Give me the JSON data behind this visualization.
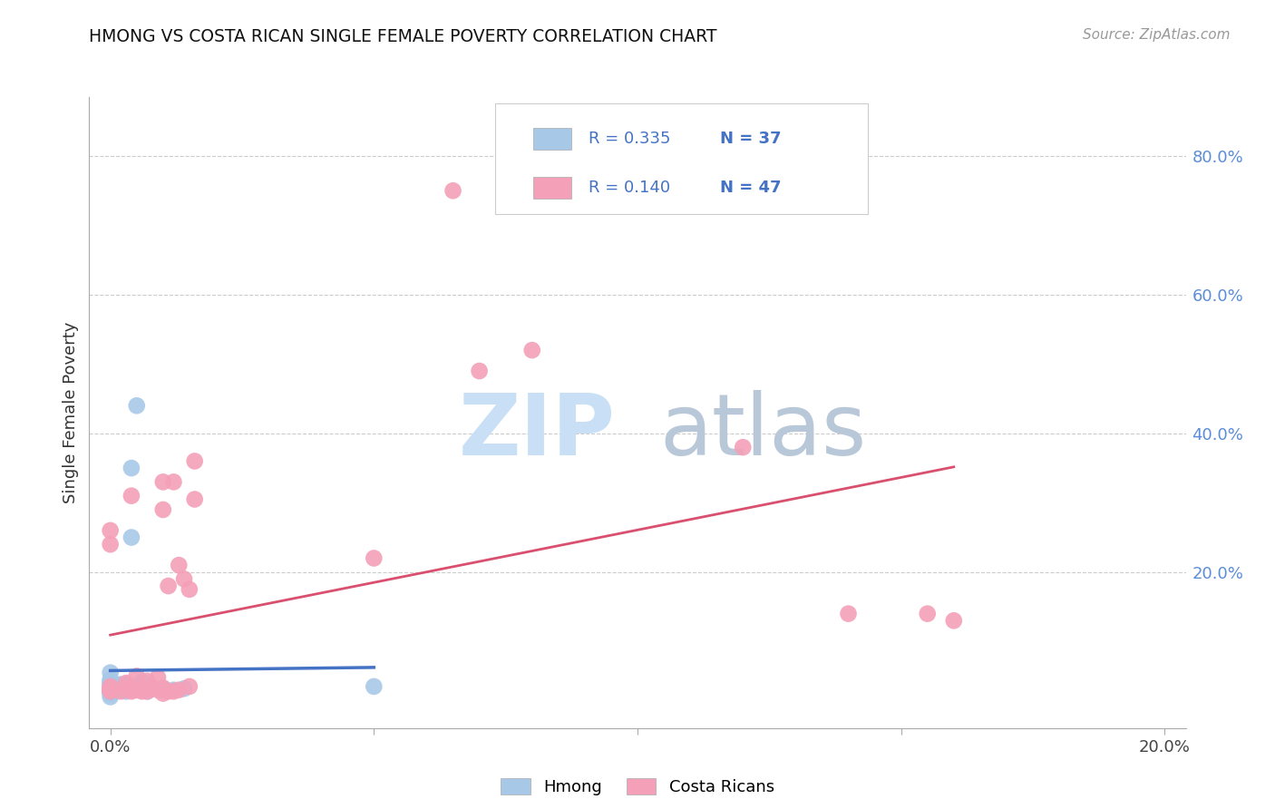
{
  "title": "HMONG VS COSTA RICAN SINGLE FEMALE POVERTY CORRELATION CHART",
  "source": "Source: ZipAtlas.com",
  "ylabel": "Single Female Poverty",
  "hmong_R": 0.335,
  "hmong_N": 37,
  "cr_R": 0.14,
  "cr_N": 47,
  "hmong_color": "#a8c8e8",
  "cr_color": "#f4a0b8",
  "hmong_line_color": "#4472c4",
  "cr_line_color": "#d94f6e",
  "rn_color": "#4472c4",
  "hmong_points_x": [
    0.0,
    0.0,
    0.0,
    0.0,
    0.0,
    0.0,
    0.0,
    0.0,
    0.0,
    0.0,
    0.0,
    0.0,
    0.0,
    0.0,
    0.0,
    0.001,
    0.001,
    0.001,
    0.001,
    0.002,
    0.002,
    0.003,
    0.003,
    0.003,
    0.004,
    0.004,
    0.005,
    0.005,
    0.005,
    0.006,
    0.006,
    0.007,
    0.01,
    0.01,
    0.012,
    0.014,
    0.05
  ],
  "hmong_points_y": [
    0.02,
    0.025,
    0.026,
    0.027,
    0.028,
    0.03,
    0.03,
    0.03,
    0.032,
    0.035,
    0.038,
    0.04,
    0.042,
    0.045,
    0.055,
    0.028,
    0.03,
    0.03,
    0.038,
    0.03,
    0.038,
    0.028,
    0.03,
    0.038,
    0.25,
    0.35,
    0.03,
    0.035,
    0.44,
    0.03,
    0.042,
    0.028,
    0.03,
    0.032,
    0.03,
    0.032,
    0.035
  ],
  "cr_points_x": [
    0.0,
    0.0,
    0.0,
    0.0,
    0.0,
    0.0,
    0.0,
    0.0,
    0.002,
    0.003,
    0.003,
    0.004,
    0.004,
    0.004,
    0.005,
    0.005,
    0.006,
    0.006,
    0.006,
    0.007,
    0.007,
    0.008,
    0.009,
    0.009,
    0.01,
    0.01,
    0.01,
    0.01,
    0.011,
    0.011,
    0.012,
    0.012,
    0.013,
    0.013,
    0.014,
    0.015,
    0.015,
    0.016,
    0.016,
    0.05,
    0.065,
    0.07,
    0.08,
    0.12,
    0.14,
    0.155,
    0.16
  ],
  "cr_points_y": [
    0.028,
    0.03,
    0.03,
    0.03,
    0.032,
    0.035,
    0.24,
    0.26,
    0.028,
    0.033,
    0.04,
    0.028,
    0.03,
    0.31,
    0.03,
    0.05,
    0.028,
    0.03,
    0.033,
    0.028,
    0.043,
    0.033,
    0.03,
    0.048,
    0.025,
    0.033,
    0.29,
    0.33,
    0.028,
    0.18,
    0.028,
    0.33,
    0.03,
    0.21,
    0.19,
    0.035,
    0.175,
    0.305,
    0.36,
    0.22,
    0.75,
    0.49,
    0.52,
    0.38,
    0.14,
    0.14,
    0.13
  ],
  "xlim": [
    -0.004,
    0.204
  ],
  "ylim": [
    -0.025,
    0.885
  ],
  "y_ticks_right": [
    0.2,
    0.4,
    0.6,
    0.8
  ],
  "x_ticks": [
    0.0,
    0.05,
    0.1,
    0.15,
    0.2
  ],
  "x_tick_labels": [
    "0.0%",
    "",
    "",
    "",
    "20.0%"
  ],
  "y_right_labels": [
    "20.0%",
    "40.0%",
    "60.0%",
    "80.0%"
  ],
  "background_color": "#ffffff",
  "grid_color": "#cccccc",
  "watermark_zip_color": "#c8dff5",
  "watermark_atlas_color": "#b8c8d8"
}
